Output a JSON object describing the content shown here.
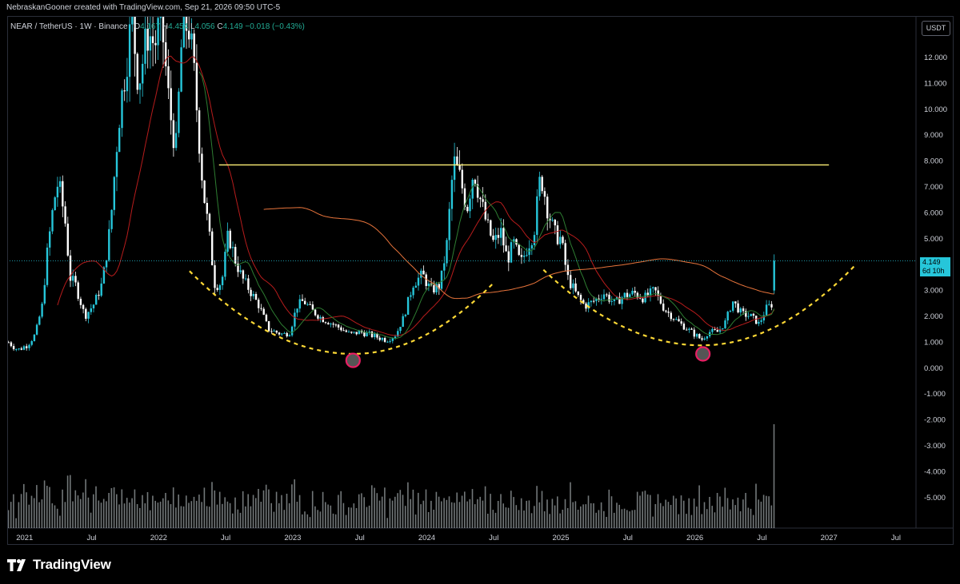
{
  "header": {
    "credit": "NebraskanGooner created with TradingView.com, Sep 21, 2026 09:50 UTC-5"
  },
  "legend": {
    "symbol": "NEAR / TetherUS · 1W · Binance",
    "open_label": "O",
    "open": "4.167",
    "high_label": "H",
    "high": "4.454",
    "low_label": "L",
    "low": "4.056",
    "close_label": "C",
    "close": "4.149",
    "change": "−0.018 (−0.43%)"
  },
  "currency_button": "USDT",
  "price_tag": {
    "price": "4.149",
    "countdown": "6d 10h"
  },
  "footer": {
    "brand": "TradingView"
  },
  "colors": {
    "up_candle": "#26c6da",
    "down_candle": "#ffffff",
    "ma_fast": "#b71c1c",
    "ma_faster": "#2e7d32",
    "ma_slow": "#e8743b",
    "resistance": "#fff176",
    "cup_curve": "#fdd835",
    "low_marker": "#e91e63",
    "volume": "#cfd8dc"
  },
  "chart_data": {
    "type": "candlestick",
    "timeframe": "1W",
    "y_ticks": [
      "12.000",
      "11.000",
      "10.000",
      "9.000",
      "8.000",
      "7.000",
      "6.000",
      "5.000",
      "4.000",
      "3.000",
      "2.000",
      "1.000",
      "0.000",
      "-1.000",
      "-2.000",
      "-3.000",
      "-4.000",
      "-5.000"
    ],
    "ylim": [
      -6.0,
      12.9
    ],
    "x_ticks": [
      {
        "label": "2021",
        "t": 2021.0
      },
      {
        "label": "Jul",
        "t": 2021.5
      },
      {
        "label": "2022",
        "t": 2022.0
      },
      {
        "label": "Jul",
        "t": 2022.5
      },
      {
        "label": "2023",
        "t": 2023.0
      },
      {
        "label": "Jul",
        "t": 2023.5
      },
      {
        "label": "2024",
        "t": 2024.0
      },
      {
        "label": "Jul",
        "t": 2024.5
      },
      {
        "label": "2025",
        "t": 2025.0
      },
      {
        "label": "Jul",
        "t": 2025.5
      },
      {
        "label": "2026",
        "t": 2026.0
      },
      {
        "label": "Jul",
        "t": 2026.5
      },
      {
        "label": "2027",
        "t": 2027.0
      },
      {
        "label": "Jul",
        "t": 2027.5
      }
    ],
    "xlim": [
      2020.87,
      2027.93
    ],
    "price_path": [
      [
        2020.88,
        1.0
      ],
      [
        2020.95,
        0.7
      ],
      [
        2021.02,
        0.9
      ],
      [
        2021.08,
        1.3
      ],
      [
        2021.13,
        2.4
      ],
      [
        2021.17,
        4.5
      ],
      [
        2021.22,
        6.5
      ],
      [
        2021.25,
        7.2
      ],
      [
        2021.3,
        5.8
      ],
      [
        2021.34,
        3.5
      ],
      [
        2021.38,
        3.2
      ],
      [
        2021.45,
        2.0
      ],
      [
        2021.52,
        2.5
      ],
      [
        2021.58,
        3.3
      ],
      [
        2021.64,
        5.5
      ],
      [
        2021.7,
        9.5
      ],
      [
        2021.75,
        11.5
      ],
      [
        2021.8,
        13.5
      ],
      [
        2021.85,
        11.0
      ],
      [
        2021.92,
        13.0
      ],
      [
        2021.97,
        12.5
      ],
      [
        2022.02,
        13.5
      ],
      [
        2022.08,
        10.0
      ],
      [
        2022.13,
        8.5
      ],
      [
        2022.17,
        12.5
      ],
      [
        2022.22,
        13.5
      ],
      [
        2022.27,
        11.0
      ],
      [
        2022.33,
        7.0
      ],
      [
        2022.38,
        5.0
      ],
      [
        2022.42,
        3.2
      ],
      [
        2022.47,
        3.3
      ],
      [
        2022.52,
        5.2
      ],
      [
        2022.57,
        4.2
      ],
      [
        2022.62,
        3.5
      ],
      [
        2022.68,
        3.0
      ],
      [
        2022.75,
        2.4
      ],
      [
        2022.82,
        1.5
      ],
      [
        2022.87,
        1.4
      ],
      [
        2022.93,
        1.3
      ],
      [
        2022.98,
        1.4
      ],
      [
        2023.03,
        2.4
      ],
      [
        2023.08,
        2.6
      ],
      [
        2023.15,
        2.2
      ],
      [
        2023.22,
        1.9
      ],
      [
        2023.3,
        1.7
      ],
      [
        2023.37,
        1.5
      ],
      [
        2023.43,
        1.3
      ],
      [
        2023.5,
        1.4
      ],
      [
        2023.57,
        1.3
      ],
      [
        2023.63,
        1.2
      ],
      [
        2023.7,
        1.1
      ],
      [
        2023.77,
        1.3
      ],
      [
        2023.83,
        2.0
      ],
      [
        2023.9,
        3.3
      ],
      [
        2023.97,
        3.6
      ],
      [
        2024.03,
        3.0
      ],
      [
        2024.1,
        3.2
      ],
      [
        2024.15,
        4.8
      ],
      [
        2024.2,
        8.0
      ],
      [
        2024.25,
        7.3
      ],
      [
        2024.3,
        6.2
      ],
      [
        2024.35,
        7.7
      ],
      [
        2024.4,
        6.5
      ],
      [
        2024.45,
        5.5
      ],
      [
        2024.5,
        4.8
      ],
      [
        2024.55,
        5.3
      ],
      [
        2024.6,
        4.2
      ],
      [
        2024.65,
        4.8
      ],
      [
        2024.7,
        4.0
      ],
      [
        2024.75,
        4.7
      ],
      [
        2024.8,
        5.3
      ],
      [
        2024.85,
        7.5
      ],
      [
        2024.9,
        6.2
      ],
      [
        2024.95,
        5.2
      ],
      [
        2025.0,
        5.0
      ],
      [
        2025.05,
        3.5
      ],
      [
        2025.12,
        2.8
      ],
      [
        2025.18,
        2.4
      ],
      [
        2025.25,
        2.6
      ],
      [
        2025.32,
        2.9
      ],
      [
        2025.4,
        2.5
      ],
      [
        2025.47,
        2.8
      ],
      [
        2025.55,
        2.9
      ],
      [
        2025.62,
        2.7
      ],
      [
        2025.7,
        3.0
      ],
      [
        2025.77,
        2.3
      ],
      [
        2025.85,
        1.9
      ],
      [
        2025.92,
        1.6
      ],
      [
        2026.0,
        1.3
      ],
      [
        2026.05,
        1.1
      ],
      [
        2026.1,
        1.4
      ],
      [
        2026.17,
        1.4
      ],
      [
        2026.23,
        1.8
      ],
      [
        2026.28,
        2.6
      ],
      [
        2026.35,
        2.1
      ],
      [
        2026.42,
        2.0
      ],
      [
        2026.48,
        1.7
      ],
      [
        2026.53,
        2.3
      ],
      [
        2026.58,
        2.5
      ],
      [
        2026.6,
        4.149
      ]
    ],
    "resistance_level": 7.85,
    "resistance_span": [
      2022.45,
      2027.0
    ],
    "annotations": [
      {
        "type": "cup-curve",
        "from": 2022.23,
        "to": 2024.5,
        "bottom": 2023.45,
        "bottom_price": 0.55,
        "start_price": 3.75,
        "end_price": 3.3
      },
      {
        "type": "cup-curve",
        "from": 2024.87,
        "to": 2027.2,
        "bottom": 2026.05,
        "bottom_price": 0.88,
        "start_price": 3.8,
        "end_price": 4.0
      },
      {
        "type": "low-marker",
        "t": 2023.45,
        "price": 0.3
      },
      {
        "type": "low-marker",
        "t": 2026.06,
        "price": 0.55
      }
    ]
  }
}
